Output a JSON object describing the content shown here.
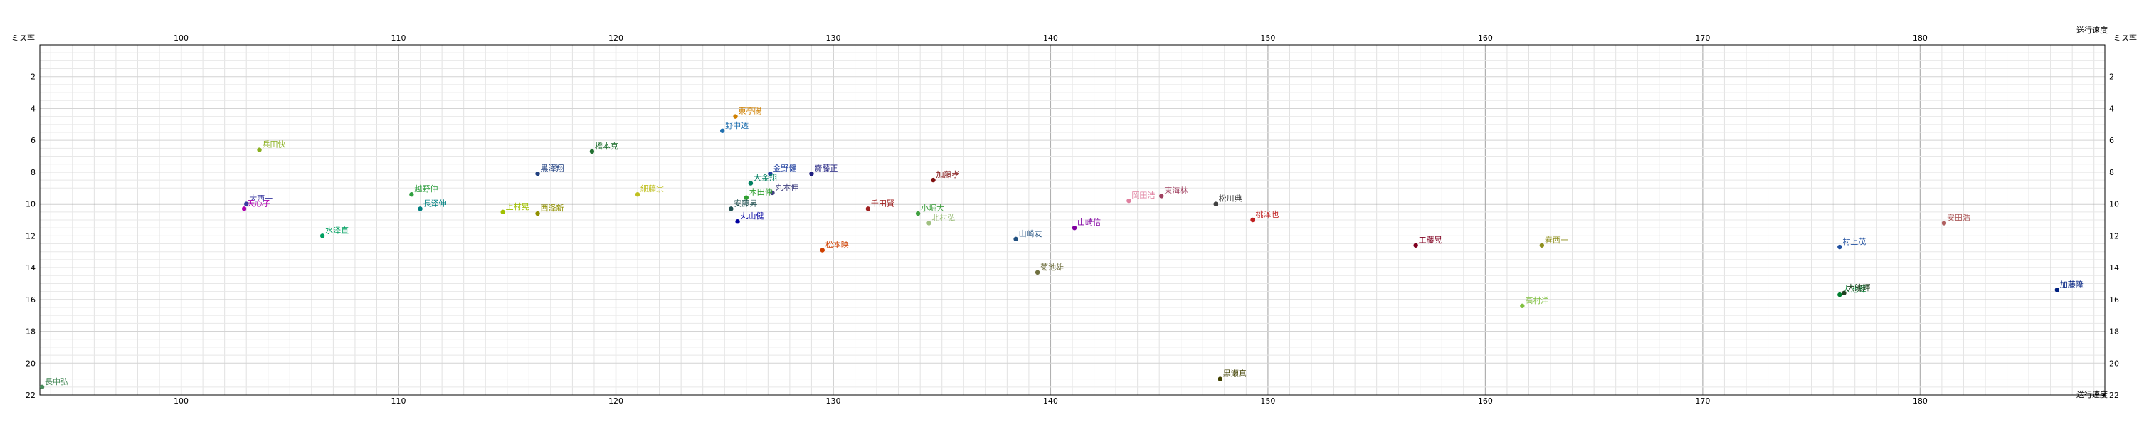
{
  "chart_data": {
    "type": "scatter",
    "title": "",
    "xlabel": "送行速度",
    "ylabel": "ミス率",
    "xlim": [
      93.5,
      188.5
    ],
    "ylim": [
      0,
      22
    ],
    "y_inverted": true,
    "grid": true,
    "x_ticks": [
      100,
      110,
      120,
      130,
      140,
      150,
      160,
      170,
      180
    ],
    "y_ticks": [
      2,
      4,
      6,
      8,
      10,
      12,
      14,
      16,
      18,
      20,
      22
    ],
    "points": [
      {
        "label": "長中弘",
        "x": 93.6,
        "y": 21.5,
        "color": "#4a8c5c"
      },
      {
        "label": "兵田快",
        "x": 103.6,
        "y": 6.6,
        "color": "#8ab020"
      },
      {
        "label": "大西一",
        "x": 103.0,
        "y": 10.0,
        "color": "#3a3aa0"
      },
      {
        "label": "天心子",
        "x": 102.9,
        "y": 10.3,
        "color": "#b000b0"
      },
      {
        "label": "水泽直",
        "x": 106.5,
        "y": 12.0,
        "color": "#00a060"
      },
      {
        "label": "越野仲",
        "x": 110.6,
        "y": 9.4,
        "color": "#30a040"
      },
      {
        "label": "長泽伸",
        "x": 111.0,
        "y": 10.3,
        "color": "#008080"
      },
      {
        "label": "上村晃",
        "x": 114.8,
        "y": 10.5,
        "color": "#a0c000"
      },
      {
        "label": "西泽新",
        "x": 116.4,
        "y": 10.6,
        "color": "#909000"
      },
      {
        "label": "黒澤翔",
        "x": 116.4,
        "y": 8.1,
        "color": "#204080"
      },
      {
        "label": "橋本克",
        "x": 118.9,
        "y": 6.7,
        "color": "#207030"
      },
      {
        "label": "細藤宗",
        "x": 121.0,
        "y": 9.4,
        "color": "#c0c020"
      },
      {
        "label": "東亭陽",
        "x": 125.5,
        "y": 4.5,
        "color": "#d08000"
      },
      {
        "label": "野中透",
        "x": 124.9,
        "y": 5.4,
        "color": "#2070b0"
      },
      {
        "label": "金野健",
        "x": 127.1,
        "y": 8.1,
        "color": "#2040a0"
      },
      {
        "label": "大金翔",
        "x": 126.2,
        "y": 8.7,
        "color": "#008060"
      },
      {
        "label": "丸本伸",
        "x": 127.2,
        "y": 9.3,
        "color": "#404080"
      },
      {
        "label": "木田仲",
        "x": 126.0,
        "y": 9.6,
        "color": "#30a030"
      },
      {
        "label": "安藤昇",
        "x": 125.3,
        "y": 10.3,
        "color": "#205050"
      },
      {
        "label": "丸山健",
        "x": 125.6,
        "y": 11.1,
        "color": "#0000a0"
      },
      {
        "label": "齋藤正",
        "x": 129.0,
        "y": 8.1,
        "color": "#202080"
      },
      {
        "label": "松本映",
        "x": 129.5,
        "y": 12.9,
        "color": "#d04000"
      },
      {
        "label": "千田賢",
        "x": 131.6,
        "y": 10.3,
        "color": "#a02020"
      },
      {
        "label": "加藤孝",
        "x": 134.6,
        "y": 8.5,
        "color": "#801010"
      },
      {
        "label": "小堀大",
        "x": 133.9,
        "y": 10.6,
        "color": "#40a040"
      },
      {
        "label": "北村弘",
        "x": 134.4,
        "y": 11.2,
        "color": "#a0c080"
      },
      {
        "label": "山崎友",
        "x": 138.4,
        "y": 12.2,
        "color": "#205080"
      },
      {
        "label": "山崎信",
        "x": 141.1,
        "y": 11.5,
        "color": "#8000a0"
      },
      {
        "label": "菊池雄",
        "x": 139.4,
        "y": 14.3,
        "color": "#707040"
      },
      {
        "label": "岡田浩",
        "x": 143.6,
        "y": 9.8,
        "color": "#e080a0"
      },
      {
        "label": "東海林",
        "x": 145.1,
        "y": 9.5,
        "color": "#a04060"
      },
      {
        "label": "松川典",
        "x": 147.6,
        "y": 10.0,
        "color": "#404040"
      },
      {
        "label": "桃泽也",
        "x": 149.3,
        "y": 11.0,
        "color": "#c02020"
      },
      {
        "label": "黒瀬真",
        "x": 147.8,
        "y": 21.0,
        "color": "#404000"
      },
      {
        "label": "工藤晃",
        "x": 156.8,
        "y": 12.6,
        "color": "#800020"
      },
      {
        "label": "春西一",
        "x": 162.6,
        "y": 12.6,
        "color": "#909020"
      },
      {
        "label": "高村洋",
        "x": 161.7,
        "y": 16.4,
        "color": "#80c040"
      },
      {
        "label": "村上茂",
        "x": 176.3,
        "y": 12.7,
        "color": "#2050a0"
      },
      {
        "label": "大池輝",
        "x": 176.3,
        "y": 15.7,
        "color": "#008030"
      },
      {
        "label": "大池輝",
        "x": 176.5,
        "y": 15.6,
        "color": "#204020"
      },
      {
        "label": "安田浩",
        "x": 181.1,
        "y": 11.2,
        "color": "#b06060"
      },
      {
        "label": "加藤隆",
        "x": 186.3,
        "y": 15.4,
        "color": "#002080"
      }
    ]
  }
}
